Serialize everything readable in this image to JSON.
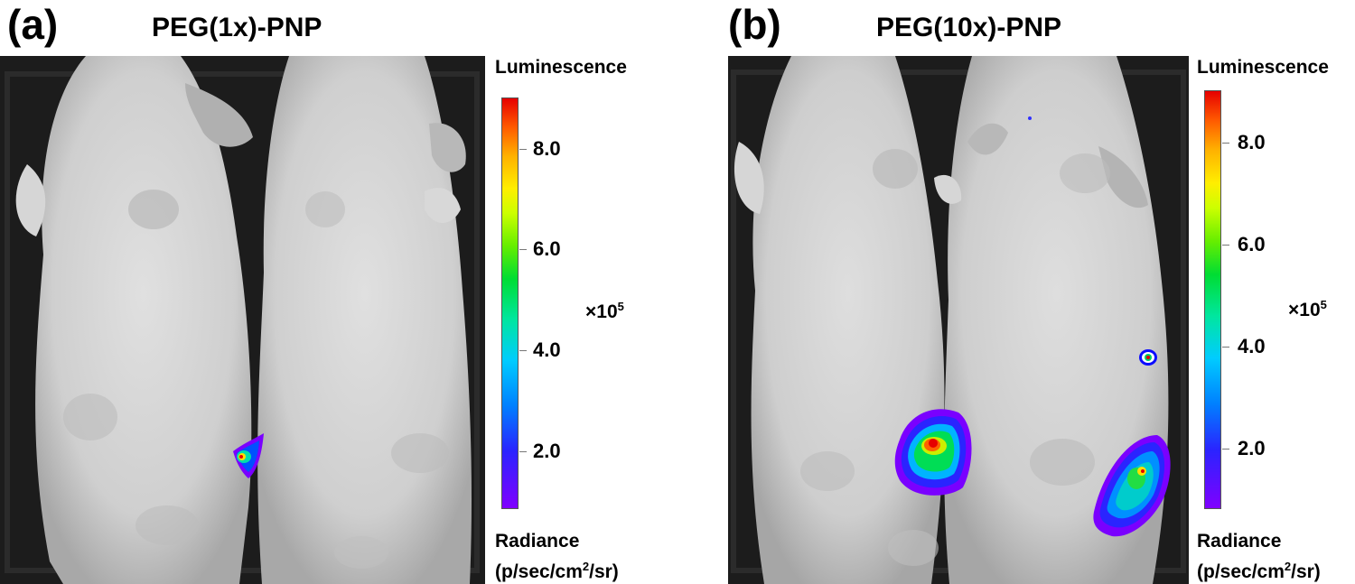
{
  "panels": [
    {
      "letter": "(a)",
      "title": "PEG(1x)-PNP",
      "colorbar": {
        "heading": "Luminescence",
        "ticks": [
          "8.0",
          "6.0",
          "4.0",
          "2.0"
        ],
        "multiplier": "×10",
        "multiplier_exp": "5",
        "radiance_label": "Radiance",
        "unit_prefix": "(p/sec/cm",
        "unit_exp": "2",
        "unit_suffix": "/sr)"
      }
    },
    {
      "letter": "(b)",
      "title": "PEG(10x)-PNP",
      "colorbar": {
        "heading": "Luminescence",
        "ticks": [
          "8.0",
          "6.0",
          "4.0",
          "2.0"
        ],
        "multiplier": "×10",
        "multiplier_exp": "5",
        "radiance_label": "Radiance",
        "unit_prefix": "(p/sec/cm",
        "unit_exp": "2",
        "unit_suffix": "/sr)"
      }
    }
  ],
  "colors": {
    "background_dark": "#1a1a1a",
    "mouse_fur": "#d4d4d4",
    "signal_high": "#e60000",
    "signal_low": "#7a00ff"
  }
}
